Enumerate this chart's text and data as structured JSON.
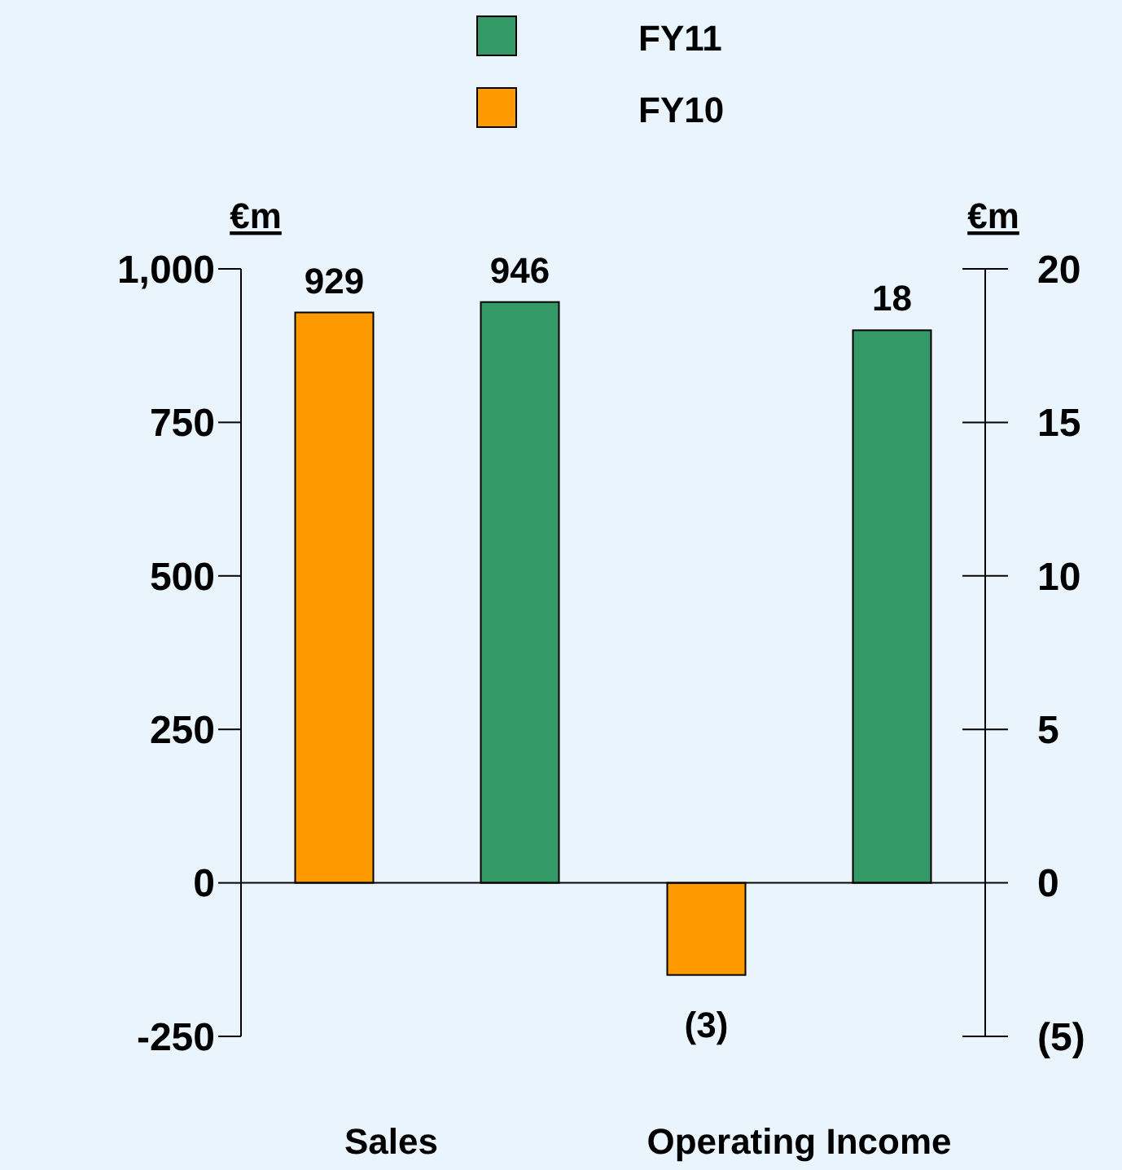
{
  "chart_data": {
    "type": "bar",
    "categories": [
      "Sales",
      "Operating Income"
    ],
    "series": [
      {
        "name": "FY10",
        "color": "#ff9900",
        "values": [
          929,
          null
        ],
        "value_labels": [
          "929",
          null
        ]
      },
      {
        "name": "FY11",
        "color": "#339966",
        "values": [
          946,
          null
        ],
        "value_labels": [
          "946",
          null
        ]
      },
      {
        "color": "#ff9900",
        "axis": "y2",
        "values": [
          null,
          -3
        ],
        "value_labels": [
          null,
          "(3)"
        ]
      },
      {
        "color": "#339966",
        "axis": "y2",
        "values": [
          null,
          18
        ],
        "value_labels": [
          null,
          "18"
        ]
      }
    ],
    "ylabel": "€m",
    "y2label": "€m",
    "ylim": [
      -250,
      1000
    ],
    "yticks": [
      -250,
      0,
      250,
      500,
      750,
      {
        "value": 1000,
        "label": "1,000"
      }
    ],
    "y2lim": [
      -5,
      20
    ],
    "y2ticks": [
      {
        "value": -5,
        "label": "(5)"
      },
      0,
      5,
      10,
      15,
      20
    ],
    "legend": "top"
  }
}
